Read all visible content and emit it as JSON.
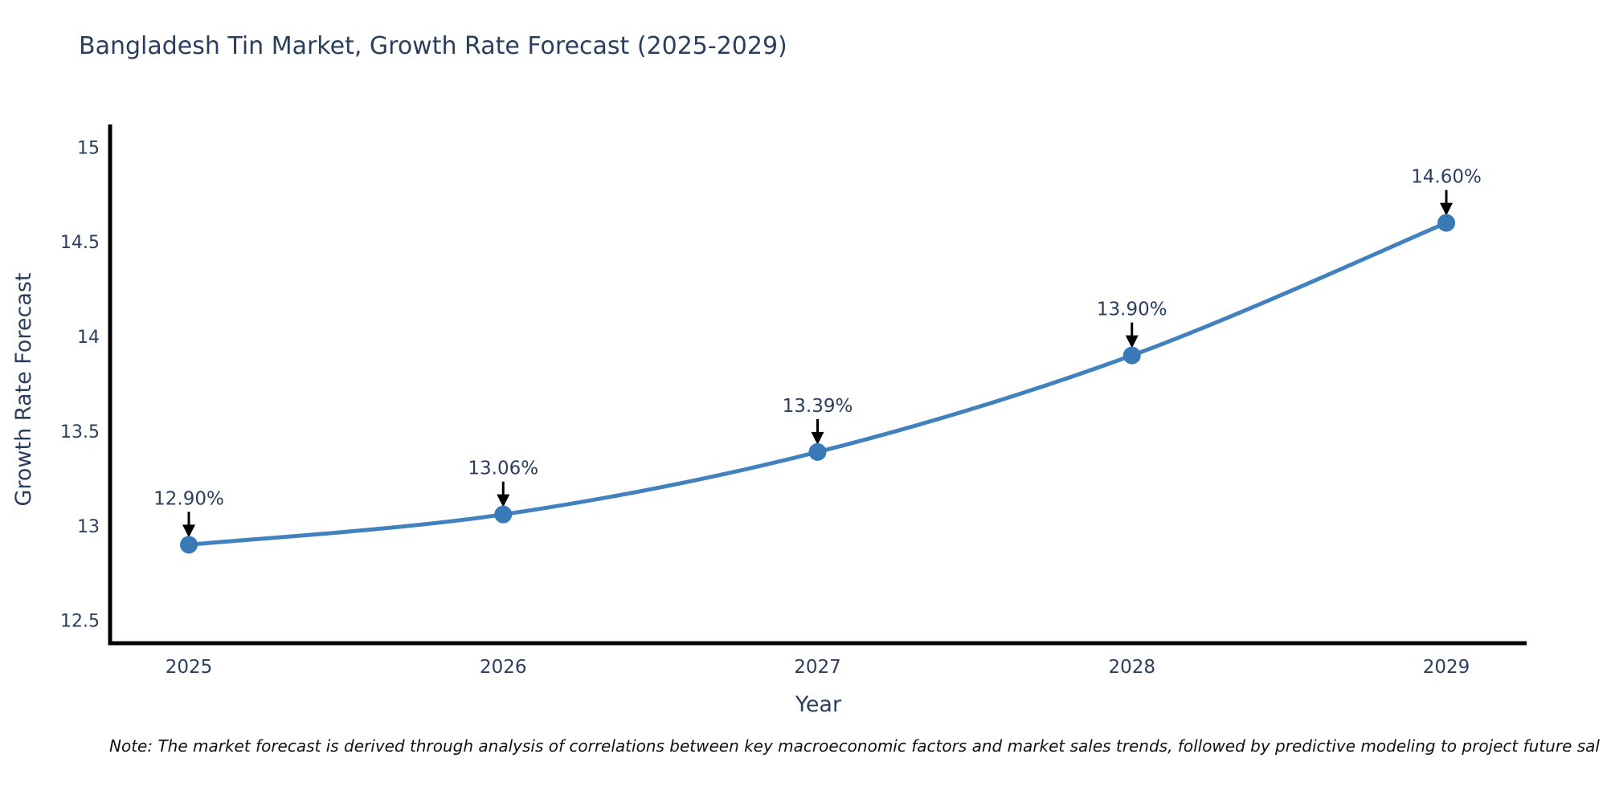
{
  "title": "Bangladesh Tin Market, Growth Rate Forecast (2025-2029)",
  "note": "Note: The market forecast is derived through analysis of correlations between key macroeconomic factors and market sales trends, followed by predictive modeling to project future sal",
  "chart_data": {
    "type": "line",
    "title": "Bangladesh Tin Market, Growth Rate Forecast (2025-2029)",
    "categories": [
      "2025",
      "2026",
      "2027",
      "2028",
      "2029"
    ],
    "series": [
      {
        "name": "Growth Rate Forecast",
        "values": [
          12.9,
          13.06,
          13.39,
          13.9,
          14.6
        ]
      }
    ],
    "point_labels": [
      "12.90%",
      "13.06%",
      "13.39%",
      "13.90%",
      "14.60%"
    ],
    "xlabel": "Year",
    "ylabel": "Growth Rate Forecast",
    "yticks": [
      "12.5",
      "13",
      "13.5",
      "14",
      "14.5",
      "15"
    ],
    "ytick_values": [
      12.5,
      13,
      13.5,
      14,
      14.5,
      15
    ],
    "ylim": [
      12.38,
      15.12
    ],
    "grid": false,
    "legend_position": "none",
    "line_smoothing": "spline",
    "annotation_style": "value-label-with-down-arrow",
    "colors": {
      "line": "#4181bd",
      "marker": "#3a79b8",
      "axis": "#000000",
      "tick_text": "#2a3f5f",
      "title_text": "#2a3f5f",
      "annotation_text": "#2a3f5f",
      "arrow": "#000000",
      "note_text": "#111111",
      "background": "#ffffff"
    }
  }
}
